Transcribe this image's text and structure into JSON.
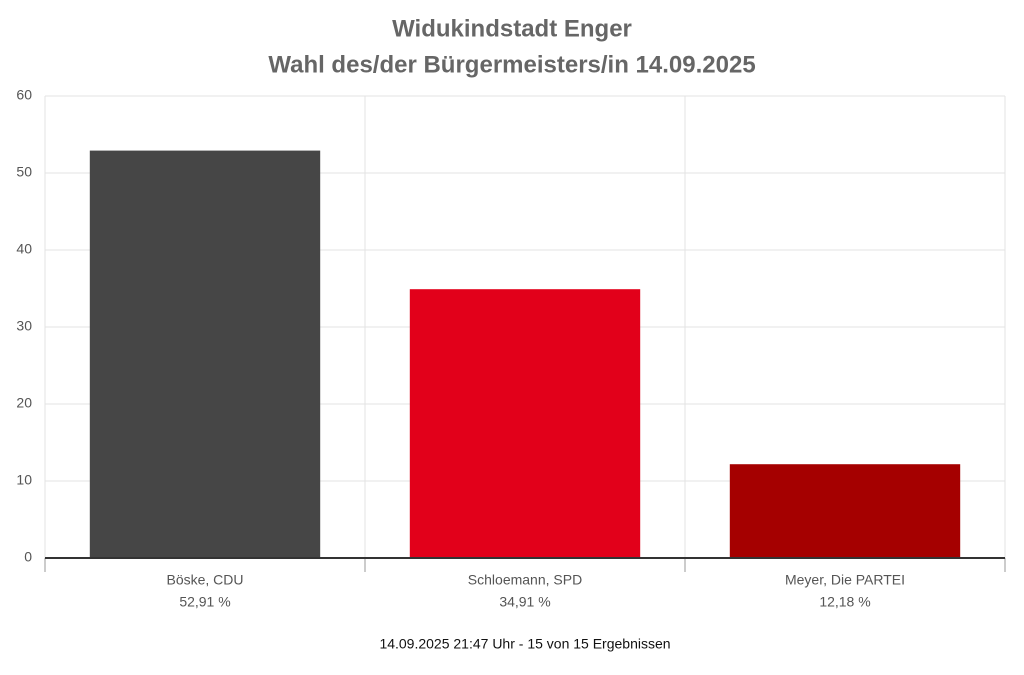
{
  "chart_data": {
    "type": "bar",
    "title": "Widukindstadt Enger",
    "subtitle": "Wahl des/der Bürgermeisters/in 14.09.2025",
    "categories": [
      "Böske, CDU",
      "Schloemann, SPD",
      "Meyer, Die PARTEI"
    ],
    "values": [
      52.91,
      34.91,
      12.18
    ],
    "value_labels": [
      "52,91 %",
      "34,91 %",
      "12,18 %"
    ],
    "colors": [
      "#464646",
      "#e2001a",
      "#a50000"
    ],
    "ylim": [
      0,
      60
    ],
    "yticks": [
      0,
      10,
      20,
      30,
      40,
      50,
      60
    ],
    "grid": true,
    "footnote": "14.09.2025 21:47 Uhr - 15 von 15 Ergebnissen"
  }
}
